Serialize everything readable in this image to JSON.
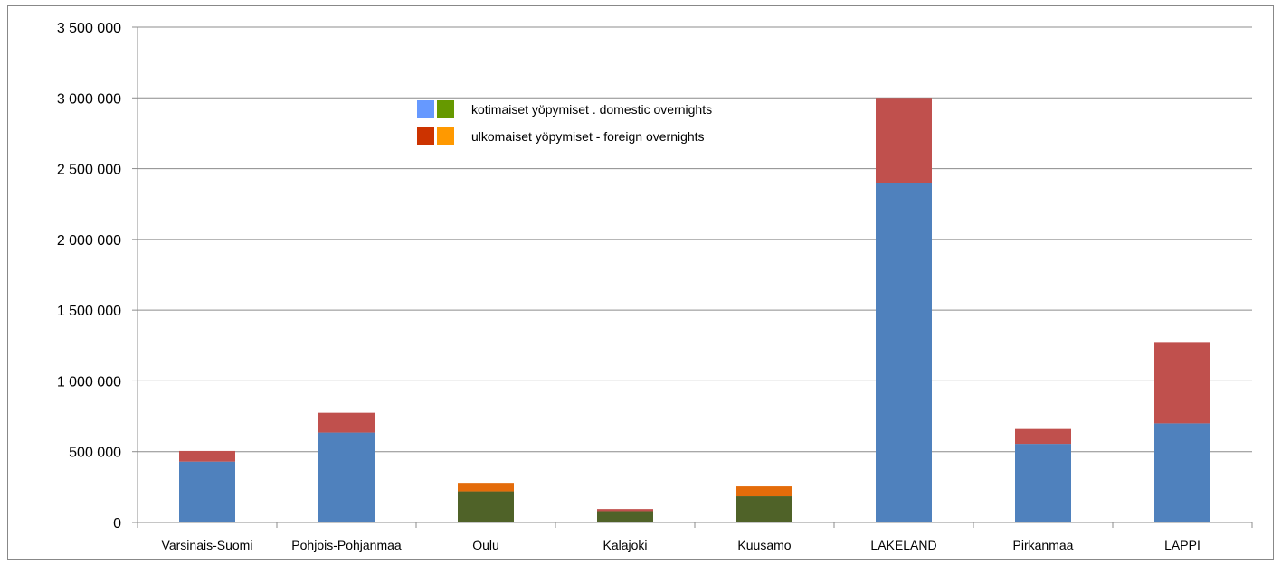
{
  "chart_data": {
    "type": "bar",
    "stacked": true,
    "categories": [
      "Varsinais-Suomi",
      "Pohjois-Pohjanmaa",
      "Oulu",
      "Kalajoki",
      "Kuusamo",
      "LAKELAND",
      "Pirkanmaa",
      "LAPPI"
    ],
    "series": [
      {
        "name": "kotimaiset yöpymiset . domestic overnights",
        "values": [
          430000,
          635000,
          220000,
          80000,
          185000,
          2400000,
          555000,
          700000
        ],
        "colors": [
          "#4f81bd",
          "#4f81bd",
          "#4f6228",
          "#4f6228",
          "#4f6228",
          "#4f81bd",
          "#4f81bd",
          "#4f81bd"
        ]
      },
      {
        "name": "ulkomaiset yöpymiset - foreign overnights",
        "values": [
          75000,
          140000,
          60000,
          15000,
          70000,
          600000,
          105000,
          575000
        ],
        "colors": [
          "#c0504d",
          "#c0504d",
          "#e46c0a",
          "#c0504d",
          "#e46c0a",
          "#c0504d",
          "#c0504d",
          "#c0504d"
        ]
      }
    ],
    "ylim": [
      0,
      3500000
    ],
    "yticks": [
      0,
      500000,
      1000000,
      1500000,
      2000000,
      2500000,
      3000000,
      3500000
    ],
    "ytick_labels": [
      "0",
      "500 000",
      "1 000 000",
      "1 500 000",
      "2 000 000",
      "2 500 000",
      "3 000 000",
      "3 500 000"
    ],
    "grid": true,
    "legend": {
      "placement": "top-center",
      "entries": [
        {
          "label": "kotimaiset yöpymiset . domestic overnights",
          "swatches": [
            "#6699ff",
            "#669900"
          ]
        },
        {
          "label": "ulkomaiset yöpymiset - foreign overnights",
          "swatches": [
            "#cc3300",
            "#ff9900"
          ]
        }
      ]
    }
  }
}
